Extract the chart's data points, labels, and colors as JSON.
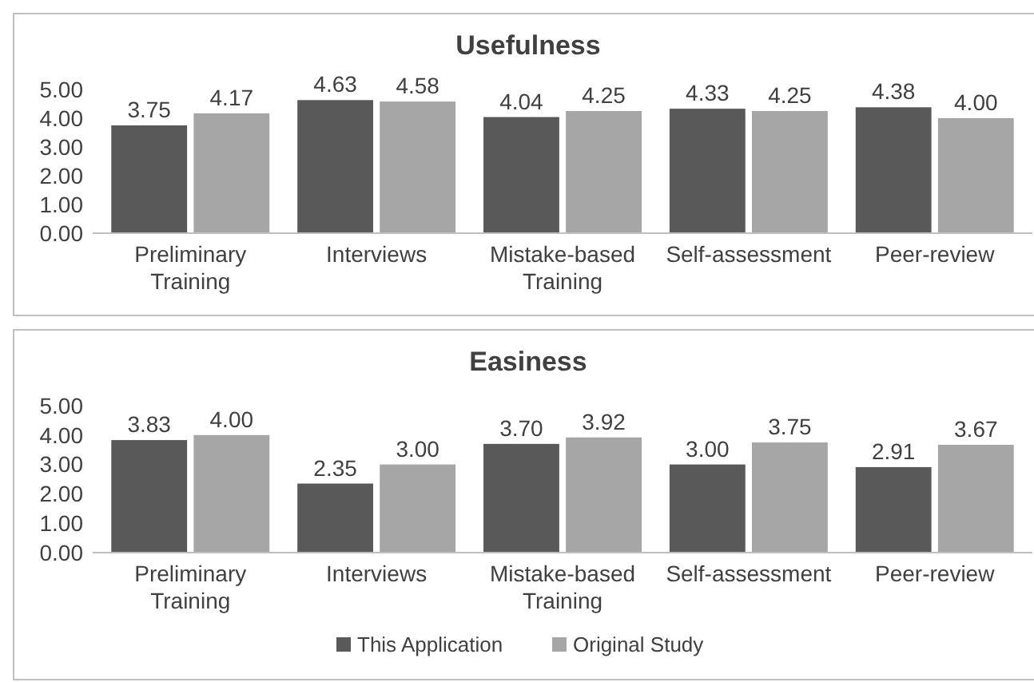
{
  "chart_data": [
    {
      "type": "bar",
      "title": "Usefulness",
      "categories": [
        "Preliminary Training",
        "Interviews",
        "Mistake-based Training",
        "Self-assessment",
        "Peer-review"
      ],
      "series": [
        {
          "color": "#595959",
          "values": [
            3.75,
            4.63,
            4.04,
            4.33,
            4.38
          ],
          "value_labels": [
            "3.75",
            "4.63",
            "4.04",
            "4.33",
            "4.38"
          ]
        },
        {
          "color": "#a6a6a6",
          "values": [
            4.17,
            4.58,
            4.25,
            4.25,
            4.0
          ],
          "value_labels": [
            "4.17",
            "4.58",
            "4.25",
            "4.25",
            "4.00"
          ]
        }
      ],
      "ylim": [
        0,
        5
      ],
      "yticks": [
        {
          "value": 0,
          "label": "0.00"
        },
        {
          "value": 1,
          "label": "1.00"
        },
        {
          "value": 2,
          "label": "2.00"
        },
        {
          "value": 3,
          "label": "3.00"
        },
        {
          "value": 4,
          "label": "4.00"
        },
        {
          "value": 5,
          "label": "5.00"
        }
      ],
      "grid": false,
      "legend": false
    },
    {
      "type": "bar",
      "title": "Easiness",
      "categories": [
        "Preliminary Training",
        "Interviews",
        "Mistake-based Training",
        "Self-assessment",
        "Peer-review"
      ],
      "series": [
        {
          "name": "This Application",
          "color": "#595959",
          "values": [
            3.83,
            2.35,
            3.7,
            3.0,
            2.91
          ],
          "value_labels": [
            "3.83",
            "2.35",
            "3.70",
            "3.00",
            "2.91"
          ]
        },
        {
          "name": "Original Study",
          "color": "#a6a6a6",
          "values": [
            4.0,
            3.0,
            3.92,
            3.75,
            3.67
          ],
          "value_labels": [
            "4.00",
            "3.00",
            "3.92",
            "3.75",
            "3.67"
          ]
        }
      ],
      "ylim": [
        0,
        5
      ],
      "yticks": [
        {
          "value": 0,
          "label": "0.00"
        },
        {
          "value": 1,
          "label": "1.00"
        },
        {
          "value": 2,
          "label": "2.00"
        },
        {
          "value": 3,
          "label": "3.00"
        },
        {
          "value": 4,
          "label": "4.00"
        },
        {
          "value": 5,
          "label": "5.00"
        }
      ],
      "grid": false,
      "legend": "bottom"
    }
  ]
}
